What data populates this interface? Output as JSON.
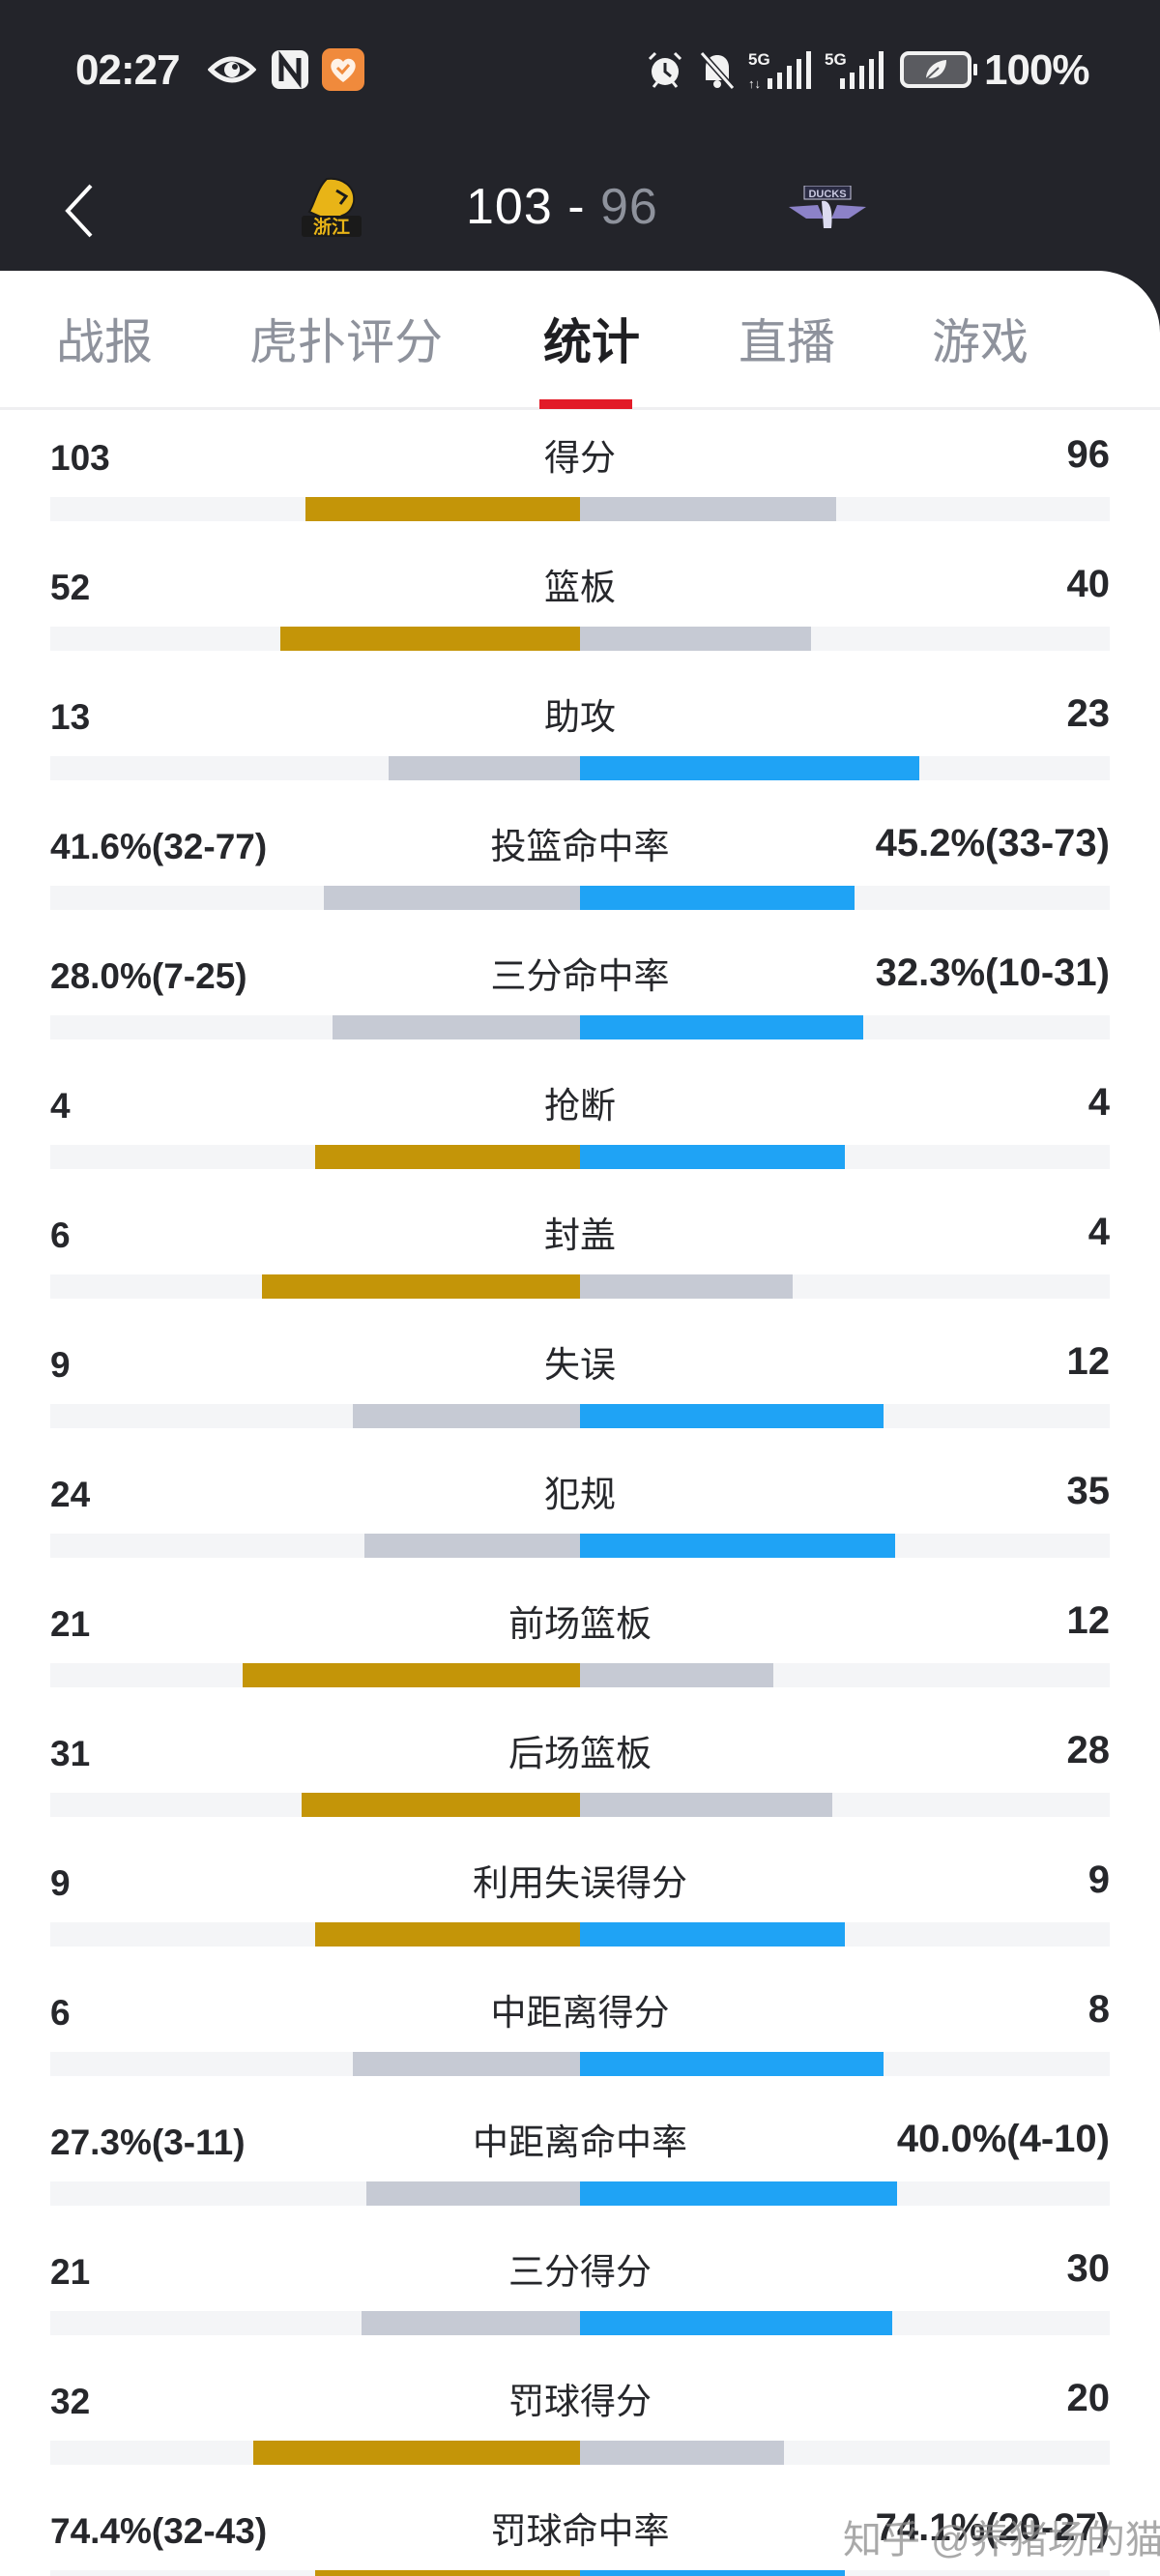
{
  "status_bar": {
    "time": "02:27",
    "left_icons": [
      "eye-icon",
      "nfc-icon",
      "health-app-icon"
    ],
    "right_icons": [
      "alarm-icon",
      "bell-muted-icon",
      "signal-5g-1-icon",
      "signal-5g-2-icon",
      "battery-saver-icon"
    ],
    "battery_percent": "100%"
  },
  "match_header": {
    "home_team_logo": "浙江",
    "away_team_logo": "DUCKS",
    "home_score": "103",
    "separator": " - ",
    "away_score": "96"
  },
  "tabs": [
    {
      "label": "战报",
      "active": false
    },
    {
      "label": "虎扑评分",
      "active": false
    },
    {
      "label": "统计",
      "active": true
    },
    {
      "label": "直播",
      "active": false
    },
    {
      "label": "游戏",
      "active": false
    }
  ],
  "colors": {
    "home_lead": "#c49508",
    "away_lead": "#1fa3f5",
    "trailing": "#c6cad4",
    "track": "#f4f5f7",
    "active_tab_underline": "#e21b28",
    "header_bg": "#23242a"
  },
  "stats": [
    {
      "label": "得分",
      "home": "103",
      "away": "96",
      "home_bar": 284,
      "away_bar": 265,
      "home_color": "gold",
      "away_color": "gray"
    },
    {
      "label": "篮板",
      "home": "52",
      "away": "40",
      "home_bar": 310,
      "away_bar": 239,
      "home_color": "gold",
      "away_color": "gray"
    },
    {
      "label": "助攻",
      "home": "13",
      "away": "23",
      "home_bar": 198,
      "away_bar": 351,
      "home_color": "gray",
      "away_color": "blue"
    },
    {
      "label": "投篮命中率",
      "home": "41.6%(32-77)",
      "away": "45.2%(33-73)",
      "home_bar": 265,
      "away_bar": 284,
      "home_color": "gray",
      "away_color": "blue"
    },
    {
      "label": "三分命中率",
      "home": "28.0%(7-25)",
      "away": "32.3%(10-31)",
      "home_bar": 256,
      "away_bar": 293,
      "home_color": "gray",
      "away_color": "blue"
    },
    {
      "label": "抢断",
      "home": "4",
      "away": "4",
      "home_bar": 274,
      "away_bar": 274,
      "home_color": "gold",
      "away_color": "blue"
    },
    {
      "label": "封盖",
      "home": "6",
      "away": "4",
      "home_bar": 329,
      "away_bar": 220,
      "home_color": "gold",
      "away_color": "gray"
    },
    {
      "label": "失误",
      "home": "9",
      "away": "12",
      "home_bar": 235,
      "away_bar": 314,
      "home_color": "gray",
      "away_color": "blue"
    },
    {
      "label": "犯规",
      "home": "24",
      "away": "35",
      "home_bar": 223,
      "away_bar": 326,
      "home_color": "gray",
      "away_color": "blue"
    },
    {
      "label": "前场篮板",
      "home": "21",
      "away": "12",
      "home_bar": 349,
      "away_bar": 200,
      "home_color": "gold",
      "away_color": "gray"
    },
    {
      "label": "后场篮板",
      "home": "31",
      "away": "28",
      "home_bar": 288,
      "away_bar": 261,
      "home_color": "gold",
      "away_color": "gray"
    },
    {
      "label": "利用失误得分",
      "home": "9",
      "away": "9",
      "home_bar": 274,
      "away_bar": 274,
      "home_color": "gold",
      "away_color": "blue"
    },
    {
      "label": "中距离得分",
      "home": "6",
      "away": "8",
      "home_bar": 235,
      "away_bar": 314,
      "home_color": "gray",
      "away_color": "blue"
    },
    {
      "label": "中距离命中率",
      "home": "27.3%(3-11)",
      "away": "40.0%(4-10)",
      "home_bar": 221,
      "away_bar": 328,
      "home_color": "gray",
      "away_color": "blue"
    },
    {
      "label": "三分得分",
      "home": "21",
      "away": "30",
      "home_bar": 226,
      "away_bar": 323,
      "home_color": "gray",
      "away_color": "blue"
    },
    {
      "label": "罚球得分",
      "home": "32",
      "away": "20",
      "home_bar": 338,
      "away_bar": 211,
      "home_color": "gold",
      "away_color": "gray"
    },
    {
      "label": "罚球命中率",
      "home": "74.4%(32-43)",
      "away": "74.1%(20-27)",
      "home_bar": 274,
      "away_bar": 274,
      "home_color": "gold",
      "away_color": "blue"
    }
  ],
  "watermark": "知乎 @养猪场的猫"
}
